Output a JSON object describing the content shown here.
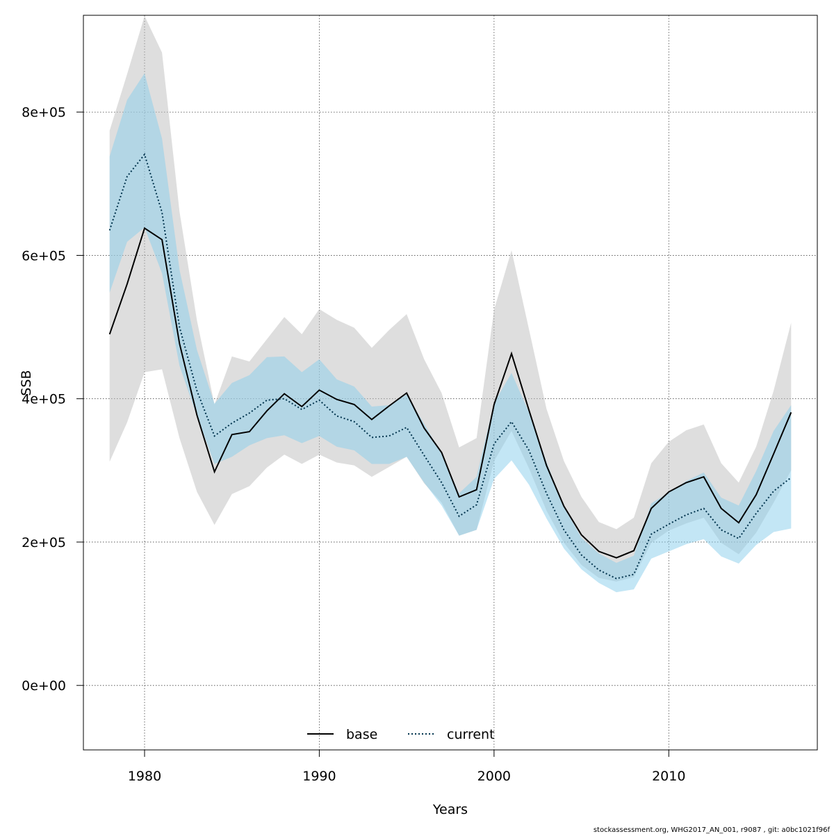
{
  "chart_data": {
    "type": "line",
    "xlabel": "Years",
    "ylabel": "SSB",
    "xlim": [
      1976.5,
      2018.5
    ],
    "ylim": [
      -90000,
      935000
    ],
    "x_ticks": [
      1980,
      1990,
      2000,
      2010
    ],
    "x_tick_labels": [
      "1980",
      "1990",
      "2000",
      "2010"
    ],
    "y_ticks": [
      0,
      200000,
      400000,
      600000,
      800000
    ],
    "y_tick_labels": [
      "0e+00",
      "2e+05",
      "4e+05",
      "6e+05",
      "8e+05"
    ],
    "grid": true,
    "legend_position": "bottom",
    "x": [
      1978,
      1979,
      1980,
      1981,
      1982,
      1983,
      1984,
      1985,
      1986,
      1987,
      1988,
      1989,
      1990,
      1991,
      1992,
      1993,
      1994,
      1995,
      1996,
      1997,
      1998,
      1999,
      2000,
      2001,
      2002,
      2003,
      2004,
      2005,
      2006,
      2007,
      2008,
      2009,
      2010,
      2011,
      2012,
      2013,
      2014,
      2015,
      2016,
      2017
    ],
    "series": [
      {
        "name": "base",
        "line_style": "solid",
        "line_color": "#000000",
        "band_color": "#bebebe",
        "values": [
          490000,
          560000,
          638000,
          622000,
          477000,
          377000,
          298000,
          350000,
          354000,
          383000,
          407000,
          389000,
          412000,
          399000,
          392000,
          371000,
          390000,
          408000,
          359000,
          325000,
          263000,
          273000,
          392000,
          463000,
          384000,
          307000,
          250000,
          210000,
          187000,
          178000,
          188000,
          247000,
          270000,
          283000,
          291000,
          247000,
          227000,
          266000,
          323000,
          381000
        ],
        "lower": [
          312000,
          367000,
          437000,
          441000,
          345000,
          270000,
          224000,
          267000,
          278000,
          304000,
          322000,
          309000,
          322000,
          311000,
          307000,
          291000,
          305000,
          319000,
          282000,
          255000,
          209000,
          217000,
          313000,
          355000,
          303000,
          244000,
          199000,
          168000,
          150000,
          145000,
          151000,
          199000,
          216000,
          226000,
          234000,
          199000,
          183000,
          213000,
          255000,
          300000
        ],
        "upper": [
          774000,
          853000,
          934000,
          883000,
          661000,
          509000,
          392000,
          459000,
          452000,
          483000,
          514000,
          490000,
          525000,
          510000,
          499000,
          471000,
          496000,
          518000,
          455000,
          408000,
          332000,
          345000,
          524000,
          607000,
          497000,
          386000,
          313000,
          263000,
          228000,
          218000,
          234000,
          310000,
          340000,
          356000,
          364000,
          310000,
          283000,
          333000,
          411000,
          506000
        ]
      },
      {
        "name": "current",
        "line_style": "dotted",
        "line_color": "#00334d",
        "band_color": "#87ceeb",
        "values": [
          635000,
          710000,
          741000,
          660000,
          500000,
          411000,
          348000,
          366000,
          380000,
          398000,
          400000,
          385000,
          398000,
          376000,
          368000,
          346000,
          348000,
          360000,
          321000,
          283000,
          236000,
          252000,
          337000,
          368000,
          328000,
          268000,
          217000,
          182000,
          161000,
          149000,
          155000,
          211000,
          225000,
          238000,
          247000,
          217000,
          205000,
          240000,
          271000,
          290000
        ],
        "lower": [
          548000,
          619000,
          639000,
          575000,
          446000,
          376000,
          309000,
          319000,
          335000,
          345000,
          349000,
          338000,
          348000,
          333000,
          328000,
          309000,
          309000,
          319000,
          283000,
          251000,
          209000,
          217000,
          288000,
          314000,
          280000,
          233000,
          191000,
          162000,
          143000,
          130000,
          134000,
          177000,
          187000,
          197000,
          204000,
          180000,
          170000,
          196000,
          214000,
          219000
        ],
        "upper": [
          738000,
          817000,
          854000,
          763000,
          580000,
          468000,
          393000,
          422000,
          433000,
          458000,
          459000,
          437000,
          455000,
          427000,
          417000,
          389000,
          391000,
          406000,
          365000,
          323000,
          268000,
          291000,
          394000,
          436000,
          381000,
          312000,
          249000,
          206000,
          184000,
          171000,
          181000,
          254000,
          269000,
          285000,
          297000,
          262000,
          251000,
          299000,
          355000,
          391000
        ]
      }
    ]
  },
  "footer_text": "stockassessment.org, WHG2017_AN_001, r9087 , git: a0bc1021f96f"
}
